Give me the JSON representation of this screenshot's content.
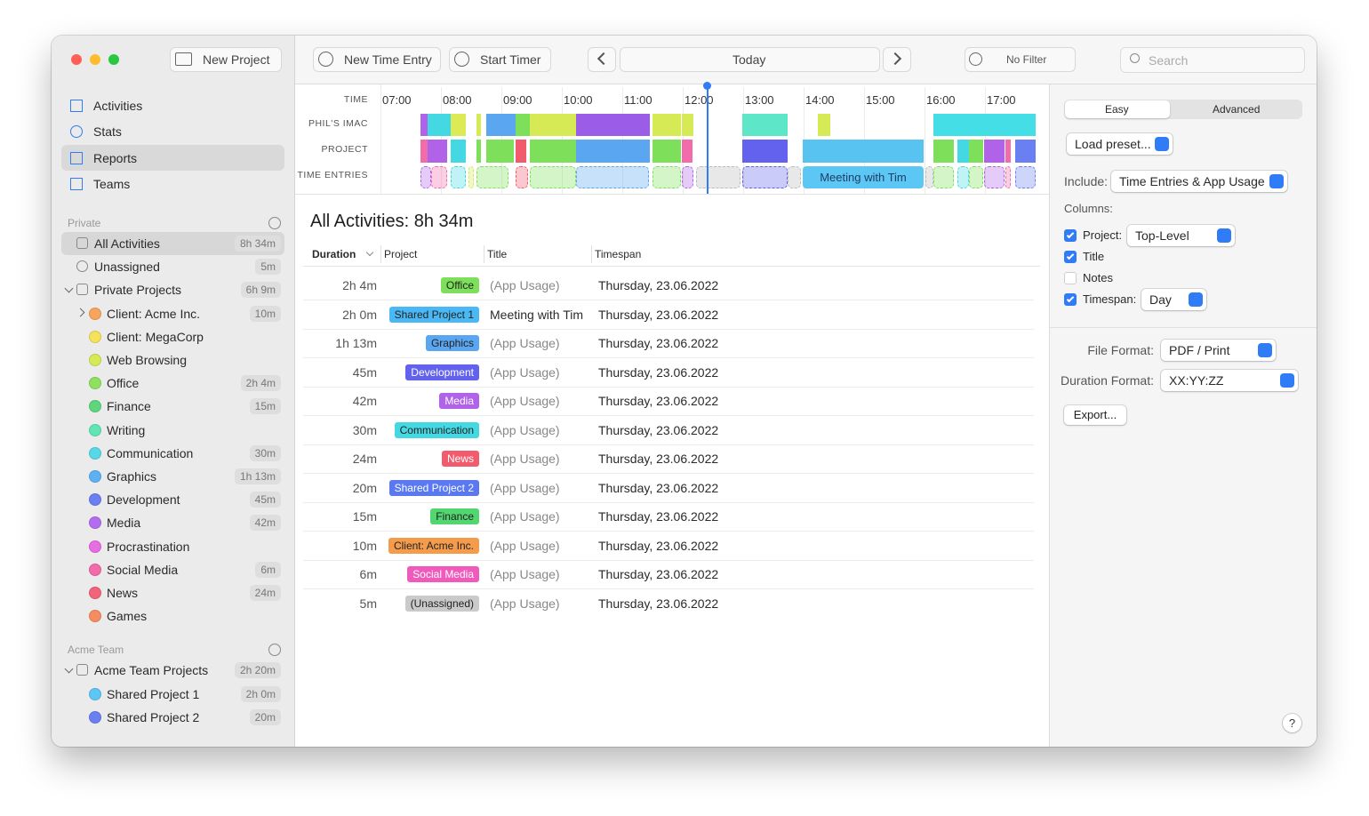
{
  "toolbar": {
    "new_project": "New Project",
    "new_time_entry": "New Time Entry",
    "start_timer": "Start Timer",
    "today": "Today",
    "filter": "No Filter",
    "search": "Search"
  },
  "sidebar": {
    "nav": [
      "Activities",
      "Stats",
      "Reports",
      "Teams"
    ],
    "sections": [
      {
        "title": "Private",
        "items": [
          {
            "label": "All Activities",
            "duration": "8h 34m"
          },
          {
            "label": "Unassigned",
            "duration": "5m"
          },
          {
            "label": "Private Projects",
            "duration": "6h 9m",
            "children": [
              {
                "label": "Client: Acme Inc.",
                "duration": "10m",
                "color": "#f7a45e"
              },
              {
                "label": "Client: MegaCorp",
                "color": "#f6e15a"
              },
              {
                "label": "Web Browsing",
                "color": "#d6ea55"
              },
              {
                "label": "Office",
                "duration": "2h 4m",
                "color": "#8fe05e"
              },
              {
                "label": "Finance",
                "duration": "15m",
                "color": "#5ed67c"
              },
              {
                "label": "Writing",
                "color": "#5fe6b4"
              },
              {
                "label": "Communication",
                "duration": "30m",
                "color": "#56d8e8"
              },
              {
                "label": "Graphics",
                "duration": "1h 13m",
                "color": "#5eb0f4"
              },
              {
                "label": "Development",
                "duration": "45m",
                "color": "#6a80f2"
              },
              {
                "label": "Media",
                "duration": "42m",
                "color": "#b36cf0"
              },
              {
                "label": "Procrastination",
                "color": "#e46ee2"
              },
              {
                "label": "Social Media",
                "duration": "6m",
                "color": "#f26cab"
              },
              {
                "label": "News",
                "duration": "24m",
                "color": "#f2647c"
              },
              {
                "label": "Games",
                "color": "#f58c62"
              }
            ]
          }
        ]
      },
      {
        "title": "Acme Team",
        "items": [
          {
            "label": "Acme Team Projects",
            "duration": "2h 20m",
            "children": [
              {
                "label": "Shared Project 1",
                "duration": "2h 0m",
                "color": "#5cc6f4"
              },
              {
                "label": "Shared Project 2",
                "duration": "20m",
                "color": "#6a80f2"
              }
            ]
          }
        ]
      }
    ]
  },
  "timeline": {
    "row_labels": [
      "TIME",
      "PHIL'S IMAC",
      "PROJECT",
      "TIME ENTRIES"
    ],
    "hours": [
      "07:00",
      "08:00",
      "09:00",
      "10:00",
      "11:00",
      "12:00",
      "13:00",
      "14:00",
      "15:00",
      "16:00",
      "17:00"
    ],
    "entry": "Meeting with Tim"
  },
  "report": {
    "title": "All Activities: 8h 34m",
    "columns": [
      "Duration",
      "Project",
      "Title",
      "Timespan"
    ],
    "rows": [
      {
        "duration": "2h 4m",
        "project": "Office",
        "color": "#7ee05a",
        "title": "(App Usage)",
        "timespan": "Thursday, 23.06.2022"
      },
      {
        "duration": "2h 0m",
        "project": "Shared Project 1",
        "color": "#4ab8f5",
        "title": "Meeting with Tim",
        "timespan": "Thursday, 23.06.2022"
      },
      {
        "duration": "1h 13m",
        "project": "Graphics",
        "color": "#5aa6f0",
        "title": "(App Usage)",
        "timespan": "Thursday, 23.06.2022"
      },
      {
        "duration": "45m",
        "project": "Development",
        "color": "#6262ee",
        "title": "(App Usage)",
        "timespan": "Thursday, 23.06.2022"
      },
      {
        "duration": "42m",
        "project": "Media",
        "color": "#b062e8",
        "title": "(App Usage)",
        "timespan": "Thursday, 23.06.2022"
      },
      {
        "duration": "30m",
        "project": "Communication",
        "color": "#44d8e2",
        "title": "(App Usage)",
        "timespan": "Thursday, 23.06.2022"
      },
      {
        "duration": "24m",
        "project": "News",
        "color": "#f25a6e",
        "title": "(App Usage)",
        "timespan": "Thursday, 23.06.2022"
      },
      {
        "duration": "20m",
        "project": "Shared Project 2",
        "color": "#5a78f0",
        "title": "(App Usage)",
        "timespan": "Thursday, 23.06.2022"
      },
      {
        "duration": "15m",
        "project": "Finance",
        "color": "#52d670",
        "title": "(App Usage)",
        "timespan": "Thursday, 23.06.2022"
      },
      {
        "duration": "10m",
        "project": "Client: Acme Inc.",
        "color": "#f59c4c",
        "title": "(App Usage)",
        "timespan": "Thursday, 23.06.2022"
      },
      {
        "duration": "6m",
        "project": "Social Media",
        "color": "#f05abc",
        "title": "(App Usage)",
        "timespan": "Thursday, 23.06.2022"
      },
      {
        "duration": "5m",
        "project": "(Unassigned)",
        "color": "#cacaca",
        "title": "(App Usage)",
        "timespan": "Thursday, 23.06.2022"
      }
    ]
  },
  "settings": {
    "modes": [
      "Easy",
      "Advanced"
    ],
    "load_preset": "Load preset...",
    "include_label": "Include:",
    "include_value": "Time Entries & App Usage",
    "columns_label": "Columns:",
    "columns": [
      {
        "label": "Project:",
        "checked": true,
        "value": "Top-Level"
      },
      {
        "label": "Title",
        "checked": true
      },
      {
        "label": "Notes",
        "checked": false
      },
      {
        "label": "Timespan:",
        "checked": true,
        "value": "Day"
      }
    ],
    "file_format_label": "File Format:",
    "file_format": "PDF / Print",
    "duration_format_label": "Duration Format:",
    "duration_format": "XX:YY:ZZ",
    "export": "Export...",
    "help": "?"
  }
}
